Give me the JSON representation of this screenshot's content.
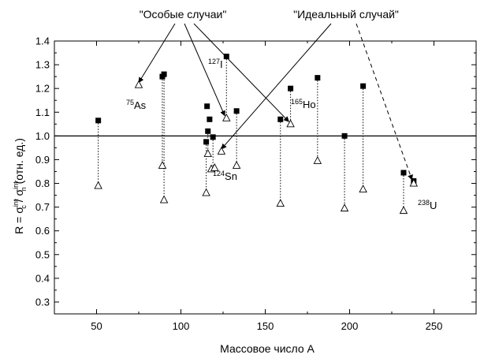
{
  "chart_data": {
    "type": "scatter",
    "xlabel": "Массовое число A",
    "ylabel": {
      "prefix": "R = σ",
      "sub1": "c",
      "sup1": "int",
      "mid": " / σ",
      "sub2": "n",
      "sup2": "int",
      "suffix": "  (отн. ед.)"
    },
    "xlim": [
      25,
      275
    ],
    "ylim": [
      0.25,
      1.4
    ],
    "x_ticks": [
      50,
      100,
      150,
      200,
      250
    ],
    "y_ticks": [
      0.3,
      0.4,
      0.5,
      0.6,
      0.7,
      0.8,
      0.9,
      1.0,
      1.1,
      1.2,
      1.3,
      1.4
    ],
    "reference_line": 1.0,
    "grid": false,
    "callouts": {
      "special": "\"Особые случаи\"",
      "ideal": "\"Идеальный случай\""
    },
    "isotopes": [
      {
        "mass": "75",
        "symbol": "As"
      },
      {
        "mass": "127",
        "symbol": "I"
      },
      {
        "mass": "165",
        "symbol": "Ho"
      },
      {
        "mass": "124",
        "symbol": "Sn"
      },
      {
        "mass": "238",
        "symbol": "U"
      }
    ],
    "series": [
      {
        "marker": "square",
        "points": [
          [
            51,
            1.065
          ],
          [
            89,
            1.25
          ],
          [
            90,
            1.26
          ],
          [
            115,
            0.975
          ],
          [
            115.5,
            1.125
          ],
          [
            116,
            1.02
          ],
          [
            117,
            1.07
          ],
          [
            119,
            0.995
          ],
          [
            127,
            1.335
          ],
          [
            133,
            1.105
          ],
          [
            159,
            1.07
          ],
          [
            165,
            1.2
          ],
          [
            181,
            1.245
          ],
          [
            197,
            1.0
          ],
          [
            208,
            1.21
          ],
          [
            232,
            0.845
          ],
          [
            238,
            0.81
          ]
        ]
      },
      {
        "marker": "open-triangle",
        "points": [
          [
            51,
            0.79
          ],
          [
            75,
            1.215
          ],
          [
            89,
            0.875
          ],
          [
            90,
            0.73
          ],
          [
            115,
            0.76
          ],
          [
            116,
            0.925
          ],
          [
            118,
            0.86
          ],
          [
            120,
            0.865
          ],
          [
            124,
            0.935
          ],
          [
            127,
            1.075
          ],
          [
            133,
            0.875
          ],
          [
            159,
            0.715
          ],
          [
            165,
            1.05
          ],
          [
            181,
            0.895
          ],
          [
            197,
            0.695
          ],
          [
            208,
            0.775
          ],
          [
            232,
            0.685
          ],
          [
            238,
            0.8
          ]
        ]
      }
    ],
    "droplines": [
      [
        51,
        1.065,
        0.79
      ],
      [
        89,
        1.25,
        0.875
      ],
      [
        90,
        1.26,
        0.73
      ],
      [
        115,
        0.975,
        0.76
      ],
      [
        116,
        1.02,
        0.925
      ],
      [
        119,
        0.995,
        0.865
      ],
      [
        127,
        1.335,
        1.075
      ],
      [
        133,
        1.105,
        0.875
      ],
      [
        159,
        1.07,
        0.715
      ],
      [
        165,
        1.2,
        1.05
      ],
      [
        181,
        1.245,
        0.895
      ],
      [
        197,
        1.0,
        0.695
      ],
      [
        208,
        1.21,
        0.775
      ],
      [
        232,
        0.845,
        0.685
      ]
    ]
  }
}
